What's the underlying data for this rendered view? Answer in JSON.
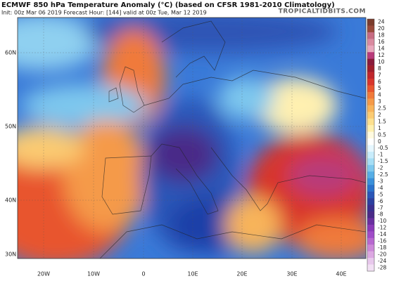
{
  "header": {
    "title": "ECMWF 850 hPa Temperature Anomaly (°C) (based on CFSR 1981-2010 Climatology)",
    "subtitle": "Init: 00z Mar 06 2019   Forecast Hour: [144]   valid at 00z Tue, Mar 12 2019",
    "watermark": "TROPICALTIDBITS.COM"
  },
  "map": {
    "lat_labels": [
      "60N",
      "50N",
      "40N",
      "30N"
    ],
    "lon_labels": [
      "20W",
      "10W",
      "0",
      "10E",
      "20E",
      "30E",
      "40E"
    ]
  },
  "colorbar": {
    "ticks": [
      24,
      20,
      18,
      16,
      14,
      12,
      10,
      8,
      7,
      6,
      5,
      4,
      3,
      2.5,
      2,
      1.5,
      1,
      0.5,
      0,
      -0.5,
      -1,
      -1.5,
      -2,
      -2.5,
      -3,
      -4,
      -5,
      -6,
      -7,
      -8,
      -10,
      -12,
      -14,
      -16,
      -18,
      -20,
      -24,
      -28
    ],
    "colors": [
      "#7b3c2c",
      "#9a4a3a",
      "#c66b82",
      "#d98aa0",
      "#e8a8bd",
      "#b83a7a",
      "#8a1a3a",
      "#a01d2a",
      "#c0262b",
      "#d8352b",
      "#e8552e",
      "#f07a3a",
      "#f59a48",
      "#f8b45a",
      "#fbcb72",
      "#fde08e",
      "#fff0b0",
      "#fffae0",
      "#ffffff",
      "#e6f7ff",
      "#c8ecfb",
      "#a6def5",
      "#7ec8ee",
      "#56aee6",
      "#3a90da",
      "#2a72cc",
      "#2a56b8",
      "#2c3fa0",
      "#3a2f90",
      "#4a2a88",
      "#6a2fa0",
      "#8a3ab8",
      "#a04cc8",
      "#b868d0",
      "#cc88d8",
      "#dca8e2",
      "#e8c8ec",
      "#f2e0f4"
    ]
  }
}
